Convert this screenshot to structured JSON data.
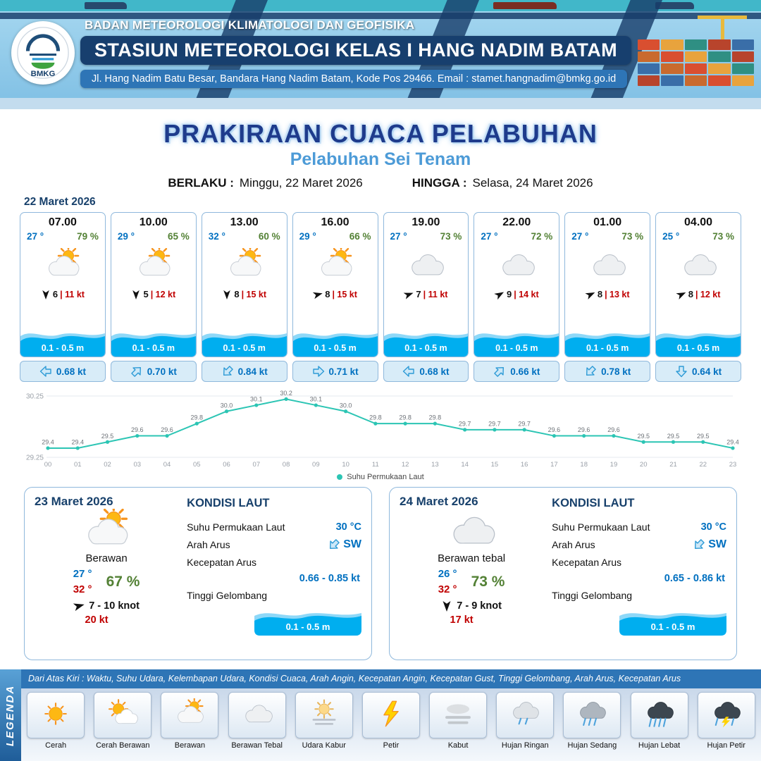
{
  "colors": {
    "accent_blue": "#0070C0",
    "dark_navy": "#17406B",
    "header_blue": "#2E75B6",
    "station_bar_blue": "#173F6E",
    "humidity_green": "#538135",
    "gust_red": "#C00000",
    "wave_blue": "#00AEEF",
    "chart_teal": "#2CC5B4"
  },
  "header": {
    "logo_text": "BMKG",
    "org": "BADAN METEOROLOGI KLIMATOLOGI DAN GEOFISIKA",
    "station": "STASIUN METEOROLOGI KELAS I HANG NADIM BATAM",
    "address": "Jl. Hang Nadim Batu Besar, Bandara Hang Nadim Batam, Kode Pos 29466. Email : stamet.hangnadim@bmkg.go.id"
  },
  "title": {
    "main": "PRAKIRAAN CUACA PELABUHAN",
    "subtitle": "Pelabuhan Sei Tenam",
    "berlaku_label": "BERLAKU :",
    "berlaku_value": "Minggu, 22 Maret 2026",
    "hingga_label": "HINGGA :",
    "hingga_value": "Selasa, 24 Maret 2026"
  },
  "hourly": {
    "date": "22 Maret 2026",
    "cards": [
      {
        "time": "07.00",
        "temp": "27 °",
        "rh": "79 %",
        "icon": "berawan",
        "wind_deg": 180,
        "wind": "6",
        "gust": "| 11 kt",
        "wave": "0.1 - 0.5 m",
        "current_deg": 270,
        "current": "0.68 kt"
      },
      {
        "time": "10.00",
        "temp": "29 °",
        "rh": "65 %",
        "icon": "berawan",
        "wind_deg": 180,
        "wind": "5",
        "gust": "| 12 kt",
        "wave": "0.1 - 0.5 m",
        "current_deg": 45,
        "current": "0.70 kt"
      },
      {
        "time": "13.00",
        "temp": "32 °",
        "rh": "60 %",
        "icon": "berawan",
        "wind_deg": 180,
        "wind": "8",
        "gust": "| 15 kt",
        "wave": "0.1 - 0.5 m",
        "current_deg": 225,
        "current": "0.84 kt"
      },
      {
        "time": "16.00",
        "temp": "29 °",
        "rh": "66 %",
        "icon": "berawan",
        "wind_deg": 75,
        "wind": "8",
        "gust": "| 15 kt",
        "wave": "0.1 - 0.5 m",
        "current_deg": 90,
        "current": "0.71 kt"
      },
      {
        "time": "19.00",
        "temp": "27 °",
        "rh": "73 %",
        "icon": "berawan_tebal",
        "wind_deg": 70,
        "wind": "7",
        "gust": "| 11 kt",
        "wave": "0.1 - 0.5 m",
        "current_deg": 270,
        "current": "0.68 kt"
      },
      {
        "time": "22.00",
        "temp": "27 °",
        "rh": "72 %",
        "icon": "berawan_tebal",
        "wind_deg": 60,
        "wind": "9",
        "gust": "| 14 kt",
        "wave": "0.1 - 0.5 m",
        "current_deg": 45,
        "current": "0.66 kt"
      },
      {
        "time": "01.00",
        "temp": "27 °",
        "rh": "73 %",
        "icon": "berawan_tebal",
        "wind_deg": 65,
        "wind": "8",
        "gust": "| 13 kt",
        "wave": "0.1 - 0.5 m",
        "current_deg": 225,
        "current": "0.78 kt"
      },
      {
        "time": "04.00",
        "temp": "25 °",
        "rh": "73 %",
        "icon": "berawan_tebal",
        "wind_deg": 65,
        "wind": "8",
        "gust": "| 12 kt",
        "wave": "0.1 - 0.5 m",
        "current_deg": 180,
        "current": "0.64 kt"
      }
    ]
  },
  "chart_data": {
    "type": "line",
    "title": "Suhu Permukaan Laut",
    "legend_label": "Suhu Permukaan Laut",
    "x": [
      "00",
      "01",
      "02",
      "03",
      "04",
      "05",
      "06",
      "07",
      "08",
      "09",
      "10",
      "11",
      "12",
      "13",
      "14",
      "15",
      "16",
      "17",
      "18",
      "19",
      "20",
      "21",
      "22",
      "23"
    ],
    "series": [
      {
        "name": "Suhu Permukaan Laut",
        "values": [
          29.4,
          29.4,
          29.5,
          29.6,
          29.6,
          29.8,
          30.0,
          30.1,
          30.2,
          30.1,
          30.0,
          29.8,
          29.8,
          29.8,
          29.7,
          29.7,
          29.7,
          29.6,
          29.6,
          29.6,
          29.5,
          29.5,
          29.5,
          29.4
        ]
      }
    ],
    "ylim": [
      29.25,
      30.25
    ],
    "yticks": [
      30.25,
      29.25
    ],
    "line_color": "#2CC5B4",
    "grid": false,
    "legend_position": "bottom-center"
  },
  "sea_labels": {
    "title": "KONDISI LAUT",
    "sst": "Suhu Permukaan Laut",
    "current_dir": "Arah Arus",
    "current_speed": "Kecepatan Arus",
    "wave": "Tinggi Gelombang"
  },
  "daily": [
    {
      "date": "23 Maret 2026",
      "icon": "berawan",
      "condition": "Berawan",
      "temp_min": "27 °",
      "temp_max": "32 °",
      "rh": "67 %",
      "wind_deg": 75,
      "wind": "7  - 10 knot",
      "gust": "20 kt",
      "sea": {
        "sst": "30 °C",
        "dir": "SW",
        "dir_deg": 225,
        "speed": "0.66  - 0.85 kt",
        "wave": "0.1 - 0.5 m"
      }
    },
    {
      "date": "24 Maret 2026",
      "icon": "berawan_tebal",
      "condition": "Berawan tebal",
      "temp_min": "26 °",
      "temp_max": "32 °",
      "rh": "73 %",
      "wind_deg": 180,
      "wind": "7  - 9 knot",
      "gust": "17 kt",
      "sea": {
        "sst": "30 °C",
        "dir": "SW",
        "dir_deg": 225,
        "speed": "0.65  - 0.86 kt",
        "wave": "0.1 - 0.5 m"
      }
    }
  ],
  "legend": {
    "sidebar": "LEGENDA",
    "description": "Dari Atas Kiri : Waktu, Suhu Udara, Kelembapan Udara, Kondisi Cuaca, Arah Angin, Kecepatan Angin, Kecepatan Gust, Tinggi Gelombang, Arah Arus, Kecepatan Arus",
    "items": [
      {
        "label": "Cerah",
        "icon": "cerah"
      },
      {
        "label": "Cerah Berawan",
        "icon": "cerah_berawan"
      },
      {
        "label": "Berawan",
        "icon": "berawan"
      },
      {
        "label": "Berawan Tebal",
        "icon": "berawan_tebal"
      },
      {
        "label": "Udara Kabur",
        "icon": "udara_kabur"
      },
      {
        "label": "Petir",
        "icon": "petir"
      },
      {
        "label": "Kabut",
        "icon": "kabut"
      },
      {
        "label": "Hujan Ringan",
        "icon": "hujan_ringan"
      },
      {
        "label": "Hujan Sedang",
        "icon": "hujan_sedang"
      },
      {
        "label": "Hujan Lebat",
        "icon": "hujan_lebat"
      },
      {
        "label": "Hujan Petir",
        "icon": "hujan_petir"
      }
    ]
  }
}
